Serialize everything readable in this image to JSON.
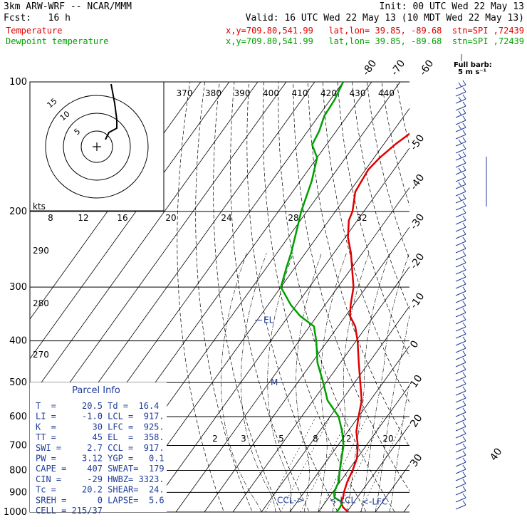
{
  "header": {
    "model": "3km ARW-WRF -- NCAR/MMM",
    "init": "Init: 00 UTC Wed 22 May 13",
    "fcst": "Fcst:   16 h",
    "valid": "Valid: 16 UTC Wed 22 May 13 (10 MDT Wed 22 May 13)",
    "temp_label": "Temperature",
    "temp_info": "x,y=709.80,541.99   lat,lon= 39.85, -89.68  stn=SPI ,72439",
    "dew_label": "Dewpoint temperature",
    "dew_info": "x,y=709.80,541.99   lat,lon= 39.85, -89.68  stn=SPI ,72439"
  },
  "colors": {
    "temperature": "#e00000",
    "dewpoint": "#00a000",
    "parcel_text": "#1f3c9b",
    "wind_barbs": "#1f3c9b",
    "hodograph": "#000000"
  },
  "chart_data": {
    "type": "line",
    "diagram": "skew-T log-P",
    "pressure_levels": [
      100,
      200,
      300,
      400,
      500,
      600,
      700,
      800,
      900,
      1000
    ],
    "temperature_ticks": [
      -80,
      -70,
      -60,
      -50,
      -40,
      -30,
      -20,
      -10,
      0,
      10,
      20,
      30,
      40
    ],
    "theta_e_labels": [
      370,
      380,
      390,
      400,
      410,
      420,
      430,
      440
    ],
    "theta_labels": [
      290,
      280,
      270
    ],
    "mixing_ratio_labels": [
      2,
      3,
      5,
      8,
      12,
      20
    ],
    "hodograph_ring_labels": [
      "15",
      "10",
      "5"
    ],
    "hodograph_axis_labels": [
      "8",
      "12",
      "16",
      "20",
      "24",
      "28",
      "32"
    ],
    "hodograph_unit": "kts",
    "wind_key": "Full barb:\n5 m s⁻¹",
    "series": [
      {
        "name": "Temperature",
        "points": [
          [
            1000,
            20.5
          ],
          [
            975,
            17.5
          ],
          [
            950,
            15.5
          ],
          [
            925,
            15.0
          ],
          [
            900,
            14.0
          ],
          [
            850,
            12.5
          ],
          [
            800,
            11.5
          ],
          [
            750,
            10.0
          ],
          [
            700,
            7.0
          ],
          [
            650,
            3.0
          ],
          [
            600,
            0.0
          ],
          [
            550,
            -3.0
          ],
          [
            500,
            -8.0
          ],
          [
            450,
            -13.5
          ],
          [
            400,
            -19.5
          ],
          [
            370,
            -24.0
          ],
          [
            350,
            -28.5
          ],
          [
            330,
            -31.0
          ],
          [
            300,
            -34.5
          ],
          [
            270,
            -40.0
          ],
          [
            250,
            -44.0
          ],
          [
            230,
            -49.0
          ],
          [
            210,
            -53.0
          ],
          [
            200,
            -54.0
          ],
          [
            180,
            -58.0
          ],
          [
            160,
            -59.0
          ],
          [
            150,
            -58.0
          ],
          [
            140,
            -56.0
          ],
          [
            130,
            -53.0
          ],
          [
            120,
            -52.5
          ],
          [
            110,
            -53.0
          ],
          [
            100,
            -53.5
          ]
        ]
      },
      {
        "name": "Dewpoint",
        "points": [
          [
            1000,
            16.4
          ],
          [
            975,
            16.4
          ],
          [
            950,
            16.0
          ],
          [
            925,
            12.0
          ],
          [
            900,
            10.5
          ],
          [
            850,
            9.5
          ],
          [
            800,
            7.0
          ],
          [
            700,
            2.0
          ],
          [
            650,
            -2.0
          ],
          [
            600,
            -7.0
          ],
          [
            550,
            -15.0
          ],
          [
            500,
            -21.0
          ],
          [
            450,
            -28.0
          ],
          [
            400,
            -34.0
          ],
          [
            370,
            -38.5
          ],
          [
            350,
            -46.0
          ],
          [
            330,
            -52.0
          ],
          [
            300,
            -60.0
          ],
          [
            270,
            -63.0
          ],
          [
            250,
            -65.0
          ],
          [
            220,
            -69.0
          ],
          [
            200,
            -72.0
          ],
          [
            170,
            -76.0
          ],
          [
            150,
            -80.0
          ],
          [
            140,
            -85.0
          ],
          [
            130,
            -86.0
          ],
          [
            120,
            -88.0
          ],
          [
            110,
            -88.5
          ],
          [
            100,
            -90.0
          ]
        ]
      }
    ],
    "markers": [
      {
        "label": "EL",
        "p": 358
      },
      {
        "label": "M",
        "p": 500
      },
      {
        "label": "CCL->",
        "p": 917
      },
      {
        "label": "<-LCL",
        "p": 917
      },
      {
        "label": "<-LFC",
        "p": 925
      }
    ]
  },
  "parcel": {
    "title": "Parcel Info",
    "rows": [
      "T  =     20.5 Td =  16.4",
      "LI =     -1.0 LCL =  917.",
      "K  =       30 LFC =  925.",
      "TT =       45 EL  =  358.",
      "SWI =     2.7 CCL =  917.",
      "PW =     3.12 YGP =   0.1",
      "CAPE =    407 SWEAT=  179",
      "CIN =     -29 HWBZ= 3323.",
      "Tc =     20.2 SHEAR=  24.",
      "SREH =      0 LAPSE=  5.6",
      "CELL = 215/37"
    ]
  }
}
